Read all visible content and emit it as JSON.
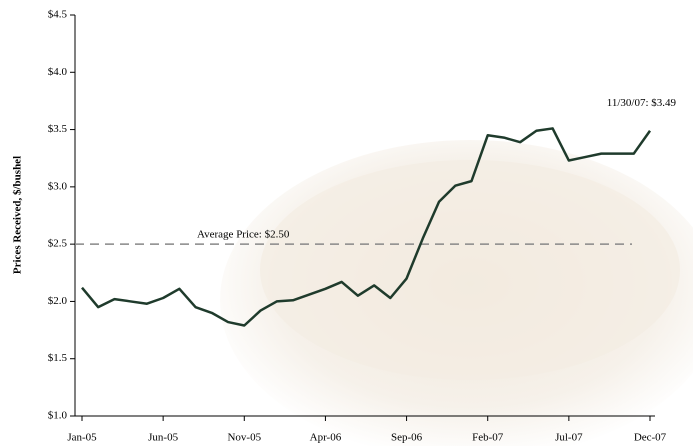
{
  "chart_data": {
    "type": "line",
    "y_axis_label": "Prices Received, $/bushel",
    "categories": [
      "Jan-05",
      null,
      null,
      null,
      null,
      "Jun-05",
      null,
      null,
      null,
      null,
      "Nov-05",
      null,
      null,
      null,
      null,
      "Apr-06",
      null,
      null,
      null,
      null,
      "Sep-06",
      null,
      null,
      null,
      null,
      "Feb-07",
      null,
      null,
      null,
      null,
      "Jul-07",
      null,
      null,
      null,
      null,
      "Dec-07"
    ],
    "series": [
      {
        "color": "#1f3b2c",
        "values": [
          2.12,
          1.95,
          2.02,
          2.0,
          1.98,
          2.03,
          2.11,
          1.95,
          1.9,
          1.82,
          1.79,
          1.92,
          2.0,
          2.01,
          2.06,
          2.11,
          2.17,
          2.05,
          2.14,
          2.03,
          2.2,
          2.55,
          2.87,
          3.01,
          3.05,
          3.45,
          3.43,
          3.39,
          3.49,
          3.51,
          3.23,
          3.26,
          3.29,
          3.29,
          3.29,
          3.49
        ]
      }
    ],
    "ylim": [
      1.0,
      4.5
    ],
    "yticks": [
      {
        "value": 1.0,
        "label": "$1.0"
      },
      {
        "value": 1.5,
        "label": "$1.5"
      },
      {
        "value": 2.0,
        "label": "$2.0"
      },
      {
        "value": 2.5,
        "label": "$2.5"
      },
      {
        "value": 3.0,
        "label": "$3.0"
      },
      {
        "value": 3.5,
        "label": "$3.5"
      },
      {
        "value": 4.0,
        "label": "$4.0"
      },
      {
        "value": 4.5,
        "label": "$4.5"
      }
    ],
    "average_line": {
      "value": 2.5,
      "label": "Average Price: $2.50",
      "color": "#888888"
    },
    "end_annotation": "11/30/07:  $3.49"
  }
}
